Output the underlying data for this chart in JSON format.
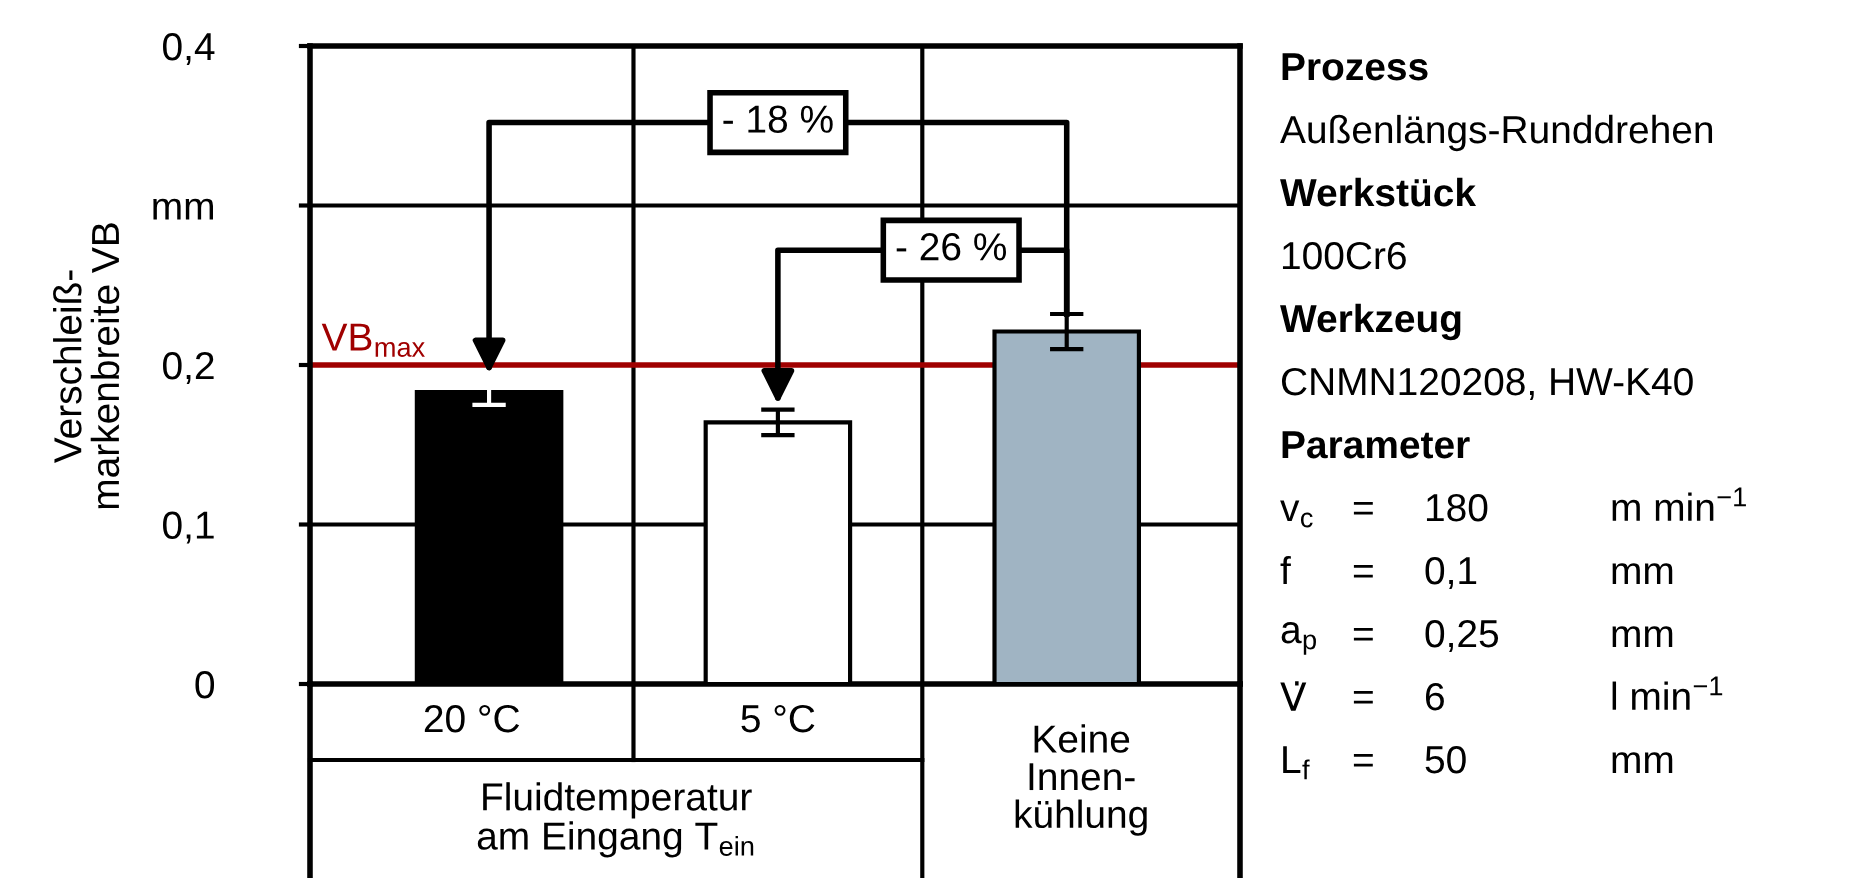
{
  "chart_data": [
    {
      "type": "bar",
      "ylabel": "Verschleiß-\nmarkenbreite VB",
      "xlabel": "Fluidtemperatur\nam Eingang T$_{ein}$",
      "categories": [
        "20 °C",
        "5 °C",
        "Keine\nInnen-\nkühlung"
      ],
      "values": [
        0.183,
        0.164,
        0.221
      ],
      "colors": [
        "#000000",
        "#ffffff",
        "#a0b4c3"
      ],
      "errors": [
        0.008,
        0.008,
        0.011
      ],
      "ylim": [
        0,
        0.4
      ],
      "yticks": [
        0,
        {
          "value": 0.1,
          "label": "0,1"
        },
        {
          "value": 0.2,
          "label": "0,2"
        },
        {
          "value": 0.3,
          "label": "mm"
        },
        {
          "value": 0.4,
          "label": "0,4"
        }
      ],
      "grid": true,
      "ref_lines": [
        {
          "axis": "y",
          "value": 0.2,
          "label": "VB$_{max}$",
          "color": "#a00000"
        }
      ],
      "annotations": [
        "- 18 %",
        "- 26 %"
      ]
    },
    {
      "type": "other",
      "annotations": [
        "Prozess",
        "Außenlängs-Runddrehen",
        "Werkstück",
        "100Cr6",
        "Werkzeug",
        "CNMN120208, HW-K40",
        "Parameter",
        "v$_{c}$",
        "=",
        "180",
        "m min$^{−1}$",
        "f",
        "=",
        "0,1",
        "mm",
        "a$_{p}$",
        "=",
        "0,25",
        "mm",
        "V̇",
        "=",
        "6",
        "l min$^{−1}$",
        "L$_{f}$",
        "=",
        "50",
        "mm"
      ]
    }
  ]
}
